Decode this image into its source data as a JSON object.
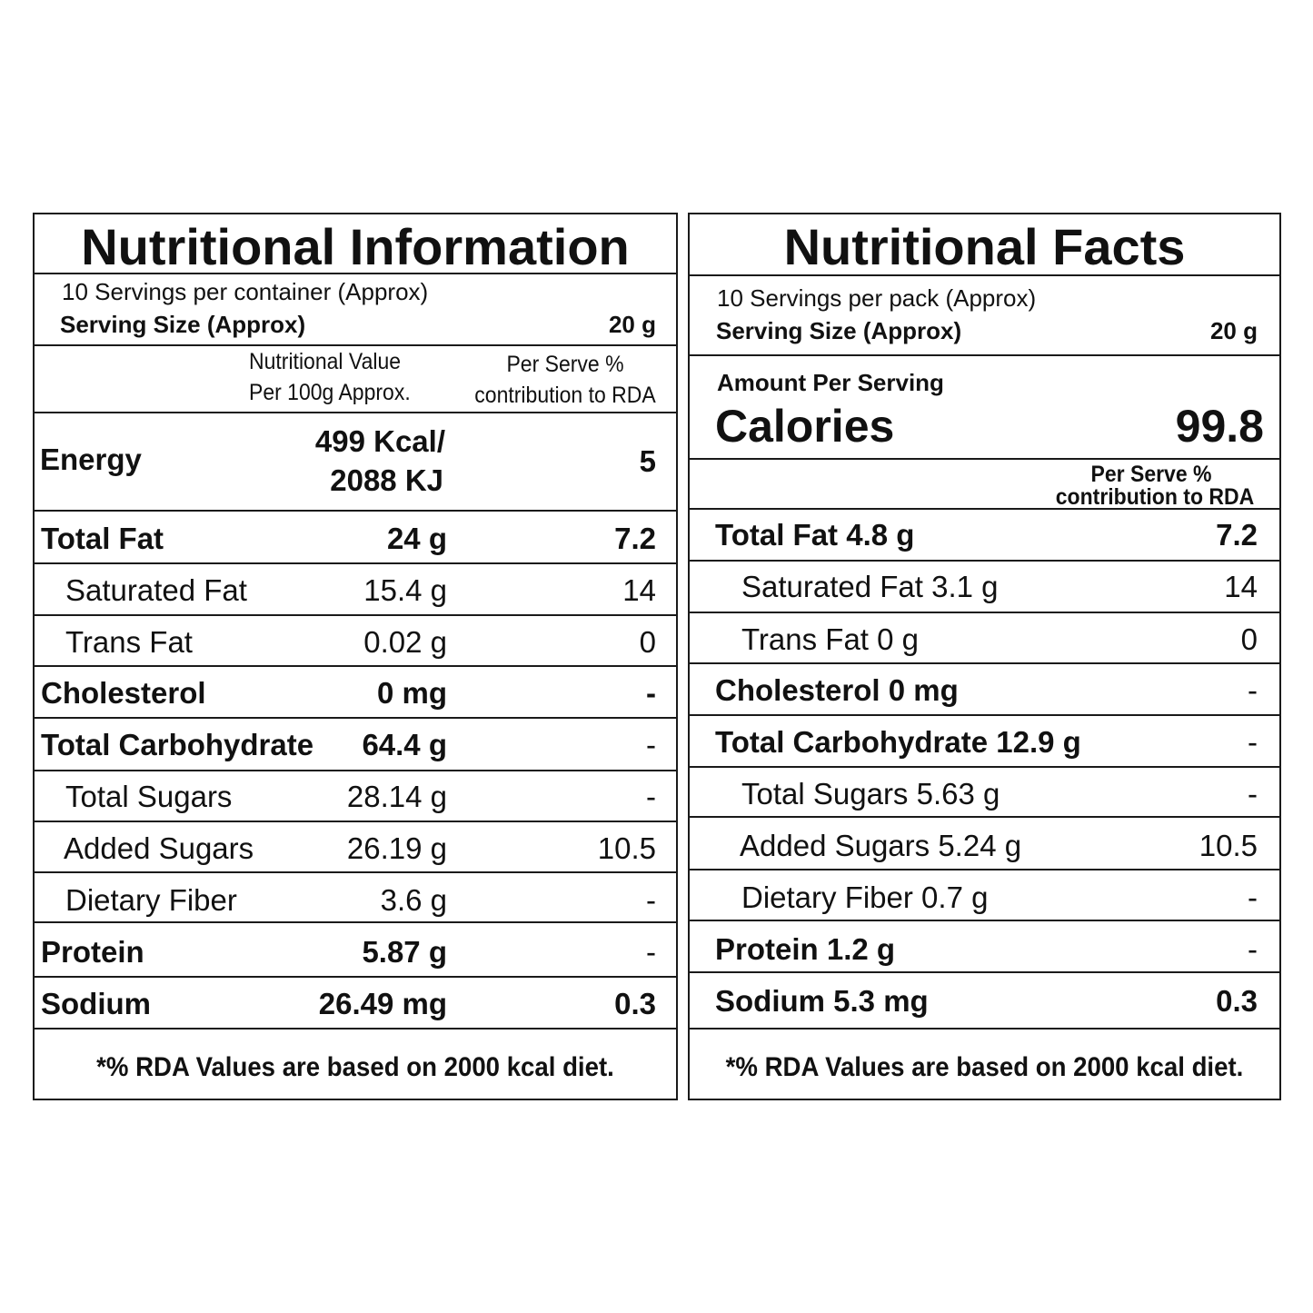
{
  "left": {
    "title": "Nutritional Information",
    "servings": "10 Servings per container (Approx)",
    "serving_size_label": "Serving Size (Approx)",
    "serving_size_value": "20 g",
    "col_header_1_line1": "Nutritional Value",
    "col_header_1_line2": "Per 100g Approx.",
    "col_header_2_line1": "Per Serve %",
    "col_header_2_line2": "contribution to RDA",
    "energy_label": "Energy",
    "energy_value_line1": "499 Kcal/",
    "energy_value_line2": "2088 KJ",
    "energy_rda": "5",
    "rows": [
      {
        "name": "Total Fat",
        "value": "24 g",
        "rda": "7.2"
      },
      {
        "name": "Saturated Fat",
        "value": "15.4 g",
        "rda": "14"
      },
      {
        "name": "Trans Fat",
        "value": "0.02 g",
        "rda": "0"
      },
      {
        "name": "Cholesterol",
        "value": "0 mg",
        "rda": "-"
      },
      {
        "name": "Total Carbohydrate",
        "value": "64.4 g",
        "rda": "-"
      },
      {
        "name": "Total Sugars",
        "value": "28.14 g",
        "rda": "-"
      },
      {
        "name": "Added Sugars",
        "value": "26.19 g",
        "rda": "10.5"
      },
      {
        "name": "Dietary Fiber",
        "value": "3.6 g",
        "rda": "-"
      },
      {
        "name": "Protein",
        "value": "5.87 g",
        "rda": "-"
      },
      {
        "name": "Sodium",
        "value": "26.49 mg",
        "rda": "0.3"
      }
    ],
    "footnote": "*% RDA Values are based on 2000 kcal diet."
  },
  "right": {
    "title": "Nutritional Facts",
    "servings": "10 Servings per pack (Approx)",
    "serving_size_label": "Serving Size (Approx)",
    "serving_size_value": "20 g",
    "amount_per_serving": "Amount Per Serving",
    "calories_label": "Calories",
    "calories_value": "99.8",
    "rda_header_line1": "Per Serve %",
    "rda_header_line2": "contribution to RDA",
    "rows": [
      {
        "name": "Total Fat 4.8 g",
        "rda": "7.2"
      },
      {
        "name": "Saturated Fat 3.1 g",
        "rda": "14"
      },
      {
        "name": "Trans Fat 0 g",
        "rda": "0"
      },
      {
        "name": "Cholesterol 0 mg",
        "rda": "-"
      },
      {
        "name": "Total Carbohydrate 12.9 g",
        "rda": "-"
      },
      {
        "name": "Total Sugars 5.63 g",
        "rda": "-"
      },
      {
        "name": "Added Sugars 5.24 g",
        "rda": "10.5"
      },
      {
        "name": "Dietary Fiber 0.7 g",
        "rda": "-"
      },
      {
        "name": "Protein 1.2 g",
        "rda": "-"
      },
      {
        "name": "Sodium 5.3 mg",
        "rda": "0.3"
      }
    ],
    "footnote": "*% RDA Values are based on 2000 kcal diet."
  }
}
